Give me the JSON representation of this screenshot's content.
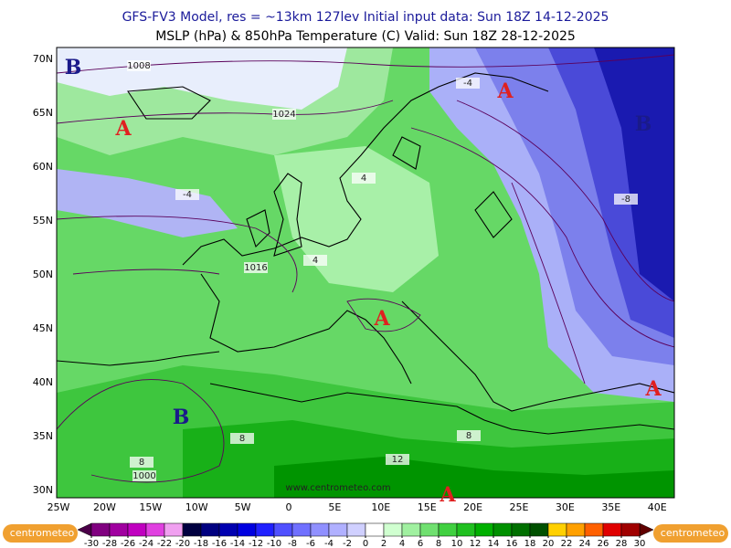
{
  "header": {
    "line1": "GFS-FV3 Model, res = ~13km 127lev   Initial input data: Sun 18Z 14-12-2025",
    "line2": "MSLP (hPa) & 850hPa Temperature (C)  Valid: Sun 18Z 28-12-2025"
  },
  "map": {
    "lat_labels": [
      "70N",
      "65N",
      "60N",
      "55N",
      "50N",
      "45N",
      "40N",
      "35N",
      "30N"
    ],
    "lon_labels": [
      "25W",
      "20W",
      "15W",
      "10W",
      "5W",
      "0",
      "5E",
      "10E",
      "15E",
      "20E",
      "25E",
      "30E",
      "35E",
      "40E"
    ],
    "pressure_centers": [
      "B",
      "A",
      "A",
      "B",
      "A",
      "B",
      "A",
      "A"
    ],
    "contour_labels": [
      "1008",
      "1024",
      "1016",
      "1000",
      "-4",
      "-4",
      "-8",
      "4",
      "4",
      "8",
      "8",
      "8",
      "12"
    ],
    "watermark": "www.centrometeo.com"
  },
  "colorbar": {
    "ticks": [
      -30,
      -28,
      -26,
      -24,
      -22,
      -20,
      -18,
      -16,
      -14,
      -12,
      -10,
      -8,
      -6,
      -4,
      -2,
      0,
      2,
      4,
      6,
      8,
      10,
      12,
      14,
      16,
      18,
      20,
      22,
      24,
      26,
      28,
      30
    ],
    "colors": [
      "#4b0048",
      "#800080",
      "#a000a0",
      "#c000c0",
      "#e040e0",
      "#f0a0f0",
      "#000040",
      "#000080",
      "#0000b0",
      "#0000e0",
      "#2020ff",
      "#5050ff",
      "#7070ff",
      "#9090ff",
      "#b0b0ff",
      "#d0d0ff",
      "#ffffff",
      "#d0ffd0",
      "#a0f0a0",
      "#70e070",
      "#40d040",
      "#20c020",
      "#00b000",
      "#009000",
      "#007000",
      "#005000",
      "#ffd000",
      "#ffa000",
      "#ff6000",
      "#e00000",
      "#a00000",
      "#600000"
    ]
  },
  "logos": [
    "centrometeo",
    "centrometeo"
  ]
}
